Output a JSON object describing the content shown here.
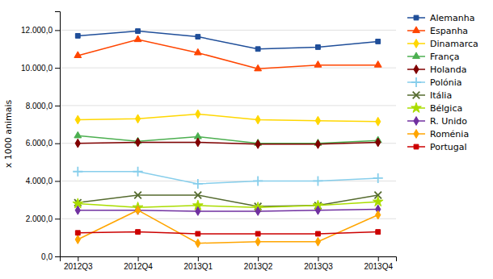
{
  "chart_data": {
    "type": "line",
    "ylabel": "x 1000 animais",
    "categories": [
      "2012Q3",
      "2012Q4",
      "2013Q1",
      "2013Q2",
      "2013Q3",
      "2013Q4"
    ],
    "series": [
      {
        "name": "Alemanha",
        "color": "#1F4E99",
        "marker": "square",
        "values": [
          11700,
          11950,
          11650,
          11000,
          11100,
          11400
        ]
      },
      {
        "name": "Espanha",
        "color": "#FF4500",
        "marker": "triangle",
        "values": [
          10650,
          11500,
          10800,
          9950,
          10150,
          10150
        ]
      },
      {
        "name": "Dinamarca",
        "color": "#FFD700",
        "marker": "diamond",
        "values": [
          7250,
          7300,
          7550,
          7250,
          7200,
          7150
        ]
      },
      {
        "name": "França",
        "color": "#4CAF50",
        "marker": "triangle",
        "values": [
          6400,
          6100,
          6350,
          6000,
          6000,
          6150
        ]
      },
      {
        "name": "Holanda",
        "color": "#800000",
        "marker": "diamond",
        "values": [
          6000,
          6050,
          6050,
          5950,
          5950,
          6050
        ]
      },
      {
        "name": "Polónia",
        "color": "#87CEEB",
        "marker": "plus",
        "values": [
          4500,
          4500,
          3850,
          4000,
          4000,
          4150
        ]
      },
      {
        "name": "Itália",
        "color": "#556B2F",
        "marker": "x",
        "values": [
          2850,
          3250,
          3250,
          2650,
          2700,
          3250
        ]
      },
      {
        "name": "Bélgica",
        "color": "#AADD00",
        "marker": "star",
        "values": [
          2800,
          2600,
          2700,
          2600,
          2700,
          2900
        ]
      },
      {
        "name": "R. Unido",
        "color": "#7030A0",
        "marker": "diamond",
        "values": [
          2450,
          2450,
          2400,
          2400,
          2450,
          2500
        ]
      },
      {
        "name": "Roménia",
        "color": "#FFA500",
        "marker": "diamond",
        "values": [
          900,
          2450,
          700,
          780,
          780,
          2200
        ]
      },
      {
        "name": "Portugal",
        "color": "#CC0000",
        "marker": "square",
        "values": [
          1250,
          1300,
          1200,
          1200,
          1200,
          1300
        ]
      }
    ],
    "ylim": [
      0,
      13000
    ],
    "yticks": [
      {
        "value": 0,
        "label": "0,0"
      },
      {
        "value": 2000,
        "label": "2.000,0"
      },
      {
        "value": 4000,
        "label": "4.000,0"
      },
      {
        "value": 6000,
        "label": "6.000,0"
      },
      {
        "value": 8000,
        "label": "8.000,0"
      },
      {
        "value": 10000,
        "label": "10.000,0"
      },
      {
        "value": 12000,
        "label": "12.000,0"
      }
    ],
    "grid": true,
    "legend": "right"
  }
}
